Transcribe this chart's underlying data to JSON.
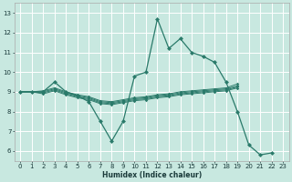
{
  "xlabel": "Humidex (Indice chaleur)",
  "bg_color": "#c8e8e0",
  "grid_color": "#ffffff",
  "line_color": "#2a7a6a",
  "xlim": [
    -0.5,
    23.5
  ],
  "ylim": [
    5.5,
    13.5
  ],
  "xticks": [
    0,
    1,
    2,
    3,
    4,
    5,
    6,
    7,
    8,
    9,
    10,
    11,
    12,
    13,
    14,
    15,
    16,
    17,
    18,
    19,
    20,
    21,
    22,
    23
  ],
  "yticks": [
    6,
    7,
    8,
    9,
    10,
    11,
    12,
    13
  ],
  "main_line_x": [
    0,
    1,
    2,
    3,
    4,
    5,
    6,
    7,
    8,
    9,
    10,
    11,
    12,
    13,
    14,
    15,
    16,
    17,
    18,
    19,
    20,
    21,
    22
  ],
  "main_line_y": [
    9,
    9,
    9,
    9.5,
    9,
    8.8,
    8.5,
    7.5,
    6.5,
    7.5,
    9.8,
    10.0,
    12.7,
    11.2,
    11.7,
    11.0,
    10.8,
    10.5,
    9.5,
    8.0,
    6.3,
    5.8,
    5.9
  ],
  "flat_lines": [
    {
      "x": [
        0,
        1,
        2,
        3,
        4,
        5,
        6,
        7,
        8,
        9,
        10,
        11,
        12,
        13,
        14,
        15,
        16,
        17,
        18,
        19
      ],
      "y": [
        9.0,
        9.0,
        9.05,
        9.2,
        9.0,
        8.85,
        8.75,
        8.55,
        8.5,
        8.6,
        8.7,
        8.75,
        8.85,
        8.9,
        9.0,
        9.05,
        9.1,
        9.15,
        9.2,
        9.4
      ]
    },
    {
      "x": [
        0,
        1,
        2,
        3,
        4,
        5,
        6,
        7,
        8,
        9,
        10,
        11,
        12,
        13,
        14,
        15,
        16,
        17,
        18,
        19
      ],
      "y": [
        9.0,
        9.0,
        9.0,
        9.15,
        8.95,
        8.8,
        8.7,
        8.5,
        8.45,
        8.55,
        8.65,
        8.7,
        8.8,
        8.85,
        8.95,
        9.0,
        9.05,
        9.1,
        9.15,
        9.3
      ]
    },
    {
      "x": [
        0,
        1,
        2,
        3,
        4,
        5,
        6,
        7,
        8,
        9,
        10,
        11,
        12,
        13,
        14,
        15,
        16,
        17,
        18,
        19
      ],
      "y": [
        9.0,
        9.0,
        8.95,
        9.1,
        8.9,
        8.75,
        8.65,
        8.45,
        8.4,
        8.5,
        8.6,
        8.65,
        8.75,
        8.8,
        8.9,
        8.95,
        9.0,
        9.05,
        9.1,
        9.25
      ]
    },
    {
      "x": [
        0,
        1,
        2,
        3,
        4,
        5,
        6,
        7,
        8,
        9,
        10,
        11,
        12,
        13,
        14,
        15,
        16,
        17,
        18,
        19
      ],
      "y": [
        9.0,
        9.0,
        8.9,
        9.05,
        8.85,
        8.7,
        8.6,
        8.4,
        8.35,
        8.45,
        8.55,
        8.6,
        8.7,
        8.75,
        8.85,
        8.9,
        8.95,
        9.0,
        9.05,
        9.2
      ]
    }
  ]
}
